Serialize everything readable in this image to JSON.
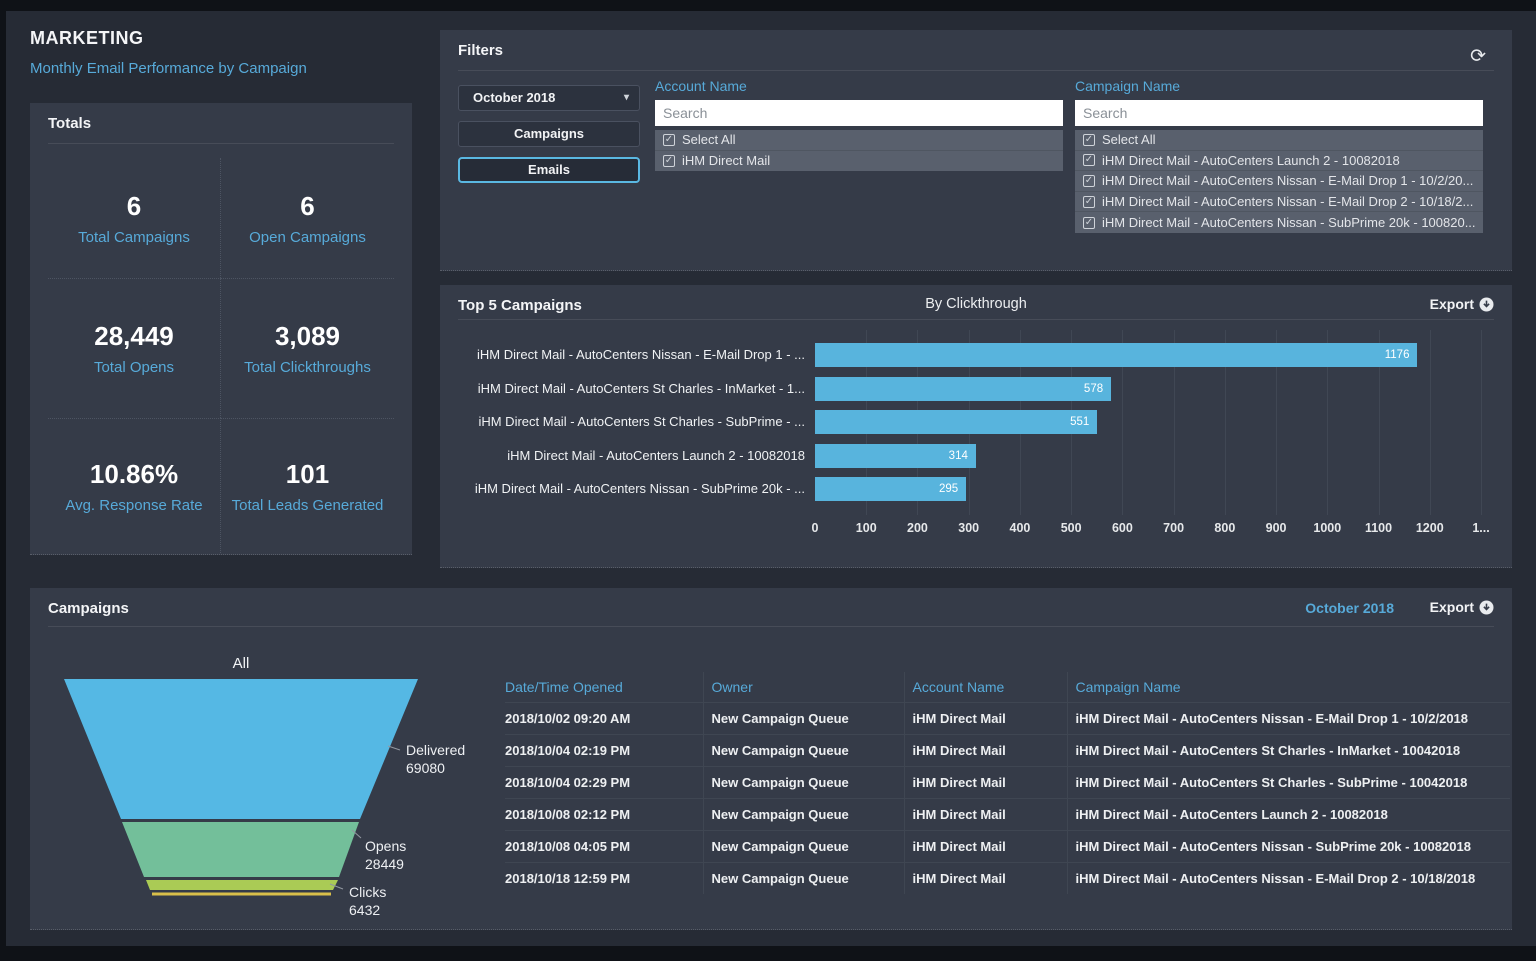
{
  "header": {
    "title": "MARKETING",
    "subtitle": "Monthly Email Performance by Campaign"
  },
  "totals": {
    "heading": "Totals",
    "stats": [
      {
        "value": "6",
        "label": "Total Campaigns"
      },
      {
        "value": "6",
        "label": "Open Campaigns"
      },
      {
        "value": "28,449",
        "label": "Total Opens"
      },
      {
        "value": "3,089",
        "label": "Total Clickthroughs"
      },
      {
        "value": "10.86%",
        "label": "Avg. Response Rate"
      },
      {
        "value": "101",
        "label": "Total Leads Generated"
      }
    ]
  },
  "filters": {
    "heading": "Filters",
    "refresh_icon": "refresh-icon",
    "month_dropdown": {
      "value": "October 2018",
      "caret": "▾"
    },
    "buttons": [
      {
        "label": "Campaigns",
        "selected": false
      },
      {
        "label": "Emails",
        "selected": true
      }
    ],
    "account": {
      "label": "Account Name",
      "placeholder": "Search",
      "options": [
        "Select All",
        "iHM Direct Mail"
      ]
    },
    "campaign": {
      "label": "Campaign Name",
      "placeholder": "Search",
      "options": [
        "Select All",
        "iHM Direct Mail - AutoCenters Launch 2 - 10082018",
        "iHM Direct Mail - AutoCenters Nissan - E-Mail Drop 1 - 10/2/20...",
        "iHM Direct Mail - AutoCenters Nissan - E-Mail Drop 2 - 10/18/2...",
        "iHM Direct Mail - AutoCenters Nissan - SubPrime 20k - 100820..."
      ]
    }
  },
  "top5": {
    "heading": "Top 5 Campaigns",
    "subtitle": "By Clickthrough",
    "export_label": "Export"
  },
  "campaigns_panel": {
    "heading": "Campaigns",
    "period": "October 2018",
    "export_label": "Export",
    "table": {
      "columns": [
        "Date/Time Opened",
        "Owner",
        "Account Name",
        "Campaign Name"
      ],
      "rows": [
        [
          "2018/10/02 09:20 AM",
          "New Campaign Queue",
          "iHM Direct Mail",
          "iHM Direct Mail - AutoCenters Nissan - E-Mail Drop 1 - 10/2/2018"
        ],
        [
          "2018/10/04 02:19 PM",
          "New Campaign Queue",
          "iHM Direct Mail",
          "iHM Direct Mail - AutoCenters St Charles - InMarket - 10042018"
        ],
        [
          "2018/10/04 02:29 PM",
          "New Campaign Queue",
          "iHM Direct Mail",
          "iHM Direct Mail - AutoCenters St Charles - SubPrime - 10042018"
        ],
        [
          "2018/10/08 02:12 PM",
          "New Campaign Queue",
          "iHM Direct Mail",
          "iHM Direct Mail - AutoCenters Launch 2 - 10082018"
        ],
        [
          "2018/10/08 04:05 PM",
          "New Campaign Queue",
          "iHM Direct Mail",
          "iHM Direct Mail - AutoCenters Nissan - SubPrime 20k - 10082018"
        ],
        [
          "2018/10/18 12:59 PM",
          "New Campaign Queue",
          "iHM Direct Mail",
          "iHM Direct Mail - AutoCenters Nissan - E-Mail Drop 2 - 10/18/2018"
        ]
      ]
    }
  },
  "chart_data": [
    {
      "type": "bar",
      "orientation": "horizontal",
      "title": "Top 5 Campaigns",
      "subtitle": "By Clickthrough",
      "categories": [
        "iHM Direct Mail - AutoCenters Nissan - E-Mail Drop 1 - ...",
        "iHM Direct Mail - AutoCenters St Charles - InMarket - 1...",
        "iHM Direct Mail - AutoCenters St Charles - SubPrime - ...",
        "iHM Direct Mail - AutoCenters Launch 2 - 10082018",
        "iHM Direct Mail - AutoCenters Nissan - SubPrime 20k - ..."
      ],
      "values": [
        1176,
        578,
        551,
        314,
        295
      ],
      "xlim": [
        0,
        1300
      ],
      "xticks": [
        "0",
        "100",
        "200",
        "300",
        "400",
        "500",
        "600",
        "700",
        "800",
        "900",
        "1000",
        "1100",
        "1200",
        "1..."
      ],
      "bar_color": "#58b4dd",
      "grid": true,
      "value_labels": true
    },
    {
      "type": "funnel",
      "title": "All",
      "stages": [
        {
          "label": "Delivered",
          "value": 69080,
          "color": "#55b8e4"
        },
        {
          "label": "Opens",
          "value": 28449,
          "color": "#73bf9a"
        },
        {
          "label": "Clicks",
          "value": 6432,
          "color": "#aacb55"
        }
      ],
      "accent_line_color": "#d9bf4a"
    }
  ],
  "colors": {
    "page_bg": "#262b35",
    "panel_bg": "#353b48",
    "accent_blue": "#57aad9",
    "bar_blue": "#58b4dd",
    "list_bg": "#59606d"
  }
}
